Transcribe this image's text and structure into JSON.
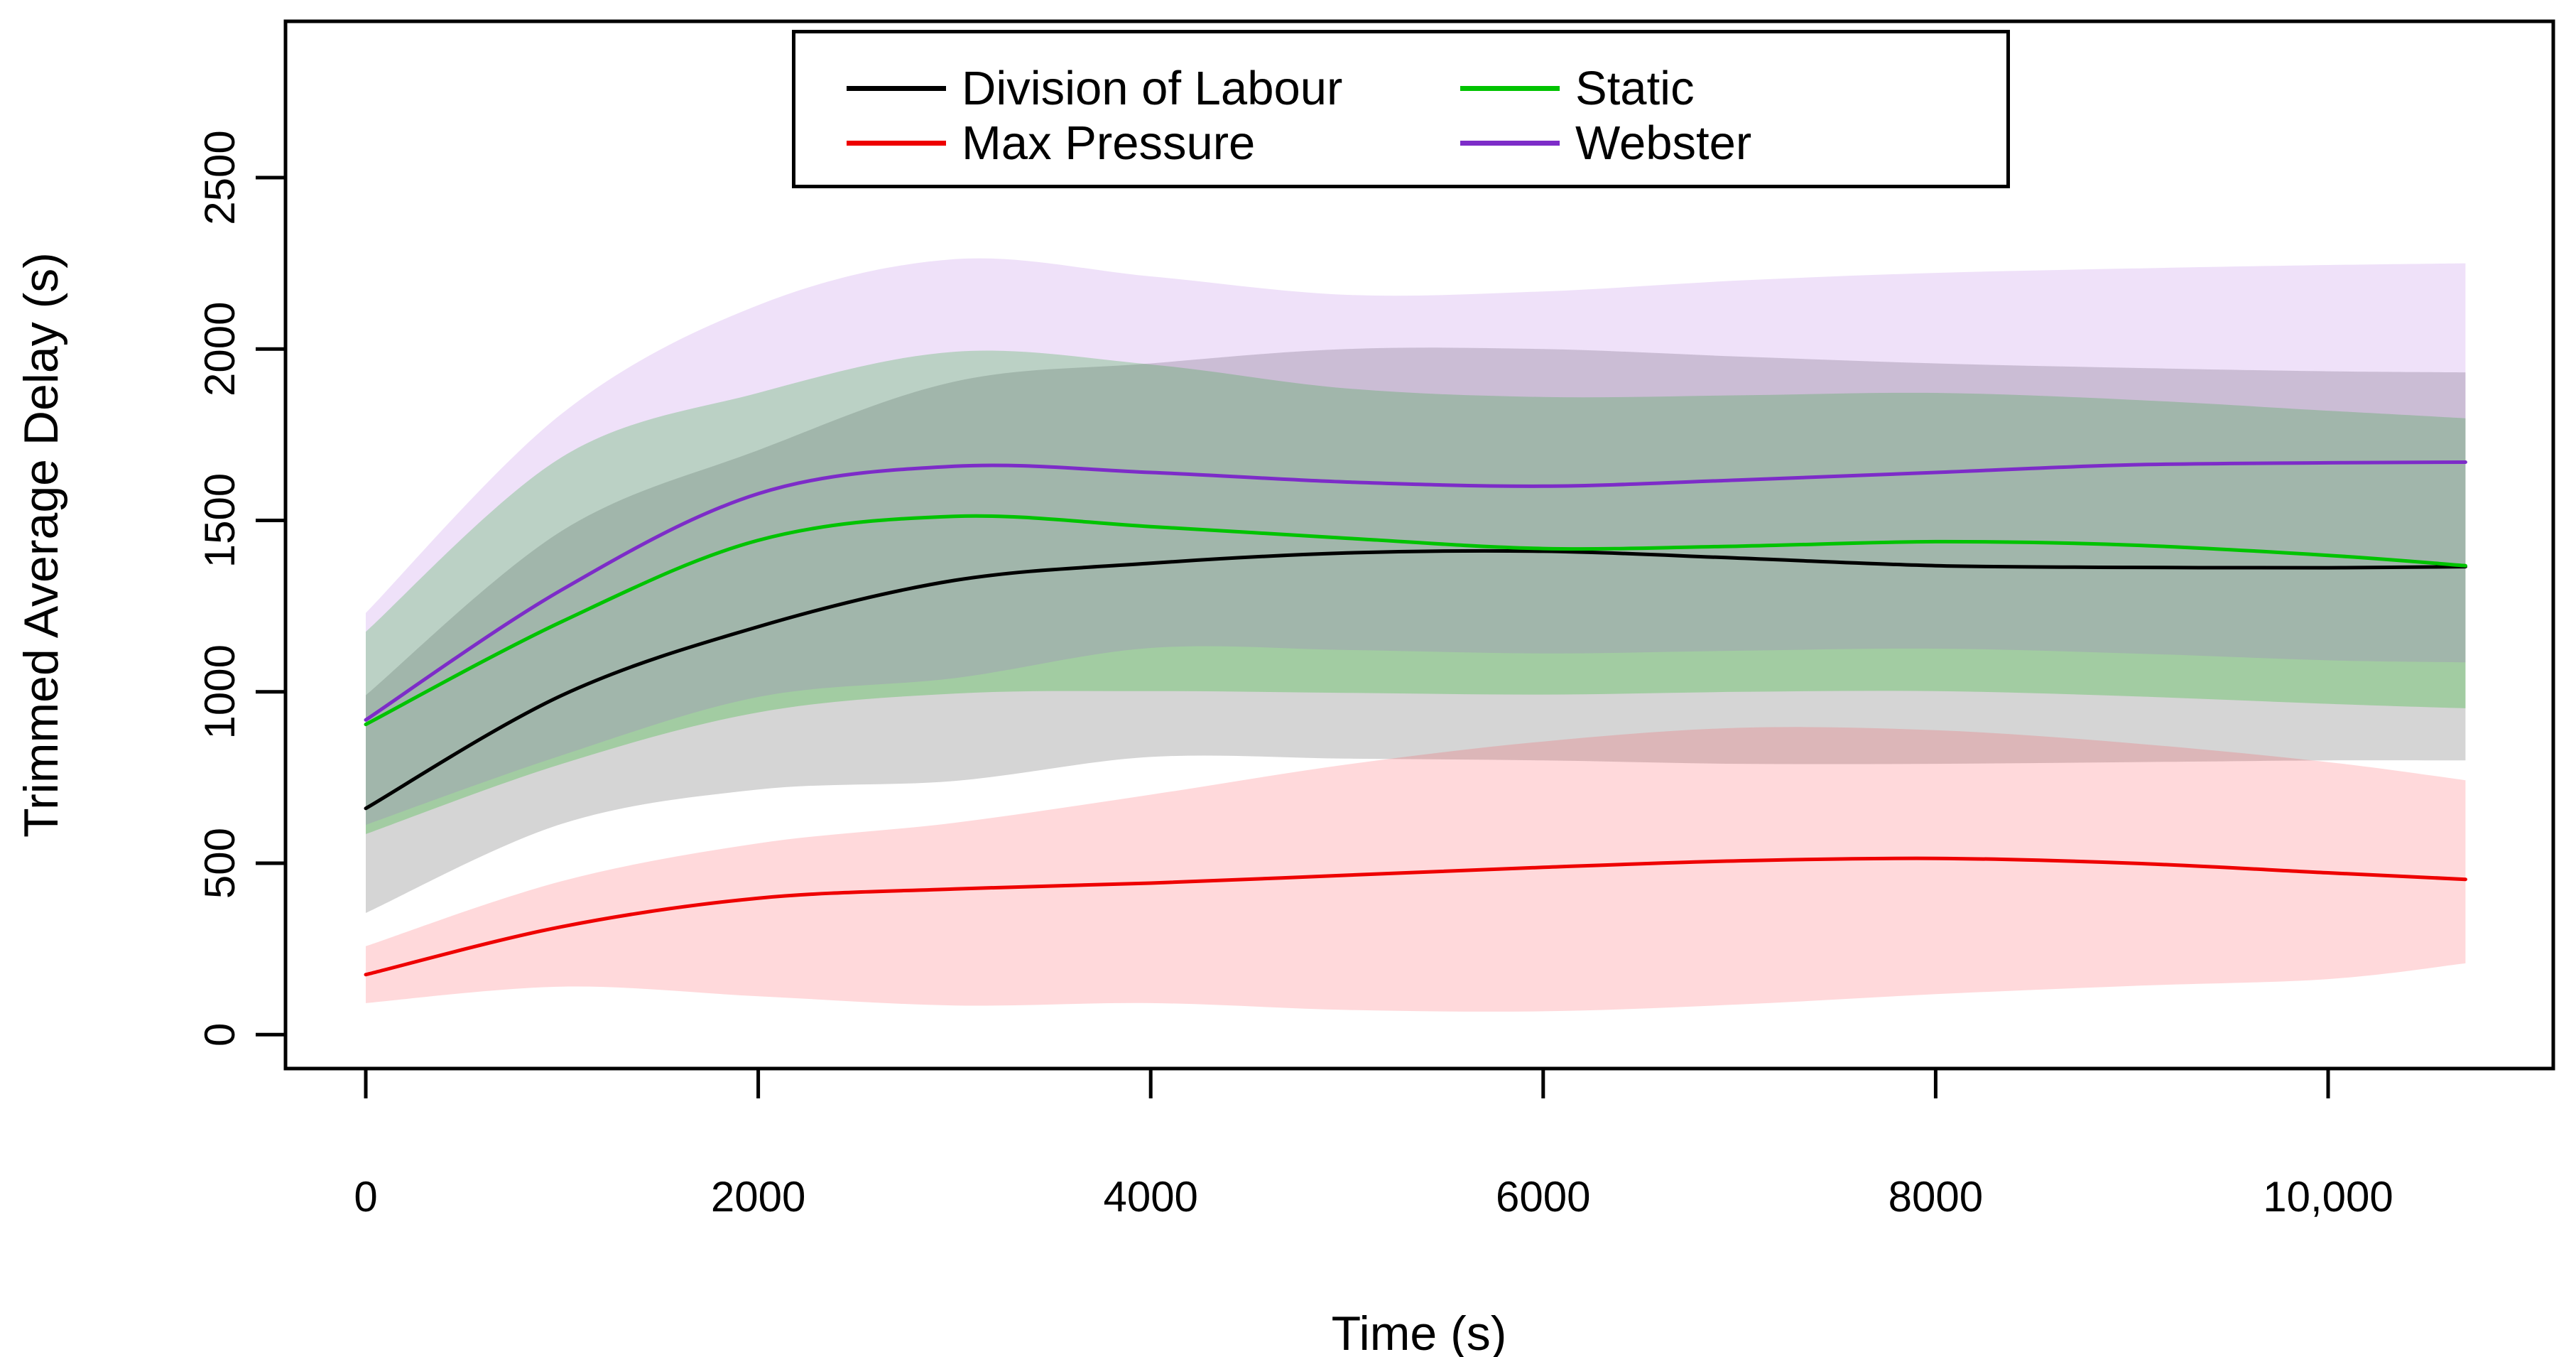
{
  "figure": {
    "background": "#ffffff",
    "x_title": "Time (s)",
    "y_title": "Trimmed Average Delay (s)"
  },
  "legend": {
    "items": [
      {
        "label": "Division of Labour",
        "color": "#000000"
      },
      {
        "label": "Max Pressure",
        "color": "#ee0000"
      },
      {
        "label": "Static",
        "color": "#00c300"
      },
      {
        "label": "Webster",
        "color": "#7d2cc8"
      }
    ]
  },
  "chart_data": {
    "type": "line",
    "title": "",
    "xlabel": "Time (s)",
    "ylabel": "Trimmed Average Delay (s)",
    "xlim": [
      0,
      10700
    ],
    "ylim": [
      0,
      2500
    ],
    "grid": false,
    "legend_position": "top-center",
    "x_ticks": [
      0,
      2000,
      4000,
      6000,
      8000,
      10000
    ],
    "x_tick_labels": [
      "0",
      "2000",
      "4000",
      "6000",
      "8000",
      "10,000"
    ],
    "y_ticks": [
      0,
      500,
      1000,
      1500,
      2000,
      2500
    ],
    "y_tick_labels": [
      "0",
      "500",
      "1000",
      "1500",
      "2000",
      "2500"
    ],
    "x": [
      0,
      1000,
      2000,
      3000,
      4000,
      5000,
      6000,
      7000,
      8000,
      9000,
      10000,
      10700
    ],
    "series": [
      {
        "name": "Division of Labour",
        "line_color": "#000000",
        "band_color": "rgba(128,128,128,0.33)",
        "mean": [
          660,
          990,
          1190,
          1325,
          1375,
          1405,
          1410,
          1390,
          1368,
          1363,
          1362,
          1365
        ],
        "lower": [
          355,
          615,
          715,
          740,
          810,
          805,
          800,
          790,
          790,
          795,
          800,
          800
        ],
        "upper": [
          990,
          1470,
          1705,
          1905,
          1958,
          2000,
          2000,
          1978,
          1958,
          1945,
          1935,
          1932
        ]
      },
      {
        "name": "Static",
        "line_color": "#00c300",
        "band_color": "rgba(10,180,10,0.25)",
        "mean": [
          905,
          1205,
          1442,
          1512,
          1482,
          1448,
          1418,
          1425,
          1438,
          1428,
          1398,
          1368
        ],
        "lower": [
          585,
          790,
          940,
          995,
          1002,
          997,
          992,
          1000,
          1002,
          987,
          965,
          952
        ],
        "upper": [
          1175,
          1685,
          1872,
          1992,
          1955,
          1885,
          1860,
          1865,
          1872,
          1852,
          1820,
          1798
        ]
      },
      {
        "name": "Webster",
        "line_color": "#7d2cc8",
        "band_color": "rgba(155,70,220,0.16)",
        "mean": [
          918,
          1298,
          1578,
          1658,
          1640,
          1612,
          1600,
          1618,
          1640,
          1662,
          1668,
          1670
        ],
        "lower": [
          612,
          815,
          985,
          1040,
          1128,
          1122,
          1112,
          1120,
          1126,
          1112,
          1092,
          1086
        ],
        "upper": [
          1230,
          1812,
          2128,
          2262,
          2212,
          2158,
          2168,
          2200,
          2222,
          2235,
          2245,
          2250
        ]
      },
      {
        "name": "Max Pressure",
        "line_color": "#ee0000",
        "band_color": "rgba(255,30,40,0.17)",
        "mean": [
          175,
          315,
          398,
          425,
          442,
          465,
          488,
          507,
          514,
          500,
          472,
          453
        ],
        "lower": [
          92,
          140,
          112,
          85,
          92,
          72,
          68,
          88,
          118,
          142,
          162,
          208
        ],
        "upper": [
          258,
          448,
          558,
          618,
          700,
          788,
          855,
          895,
          888,
          850,
          795,
          742
        ]
      }
    ]
  }
}
